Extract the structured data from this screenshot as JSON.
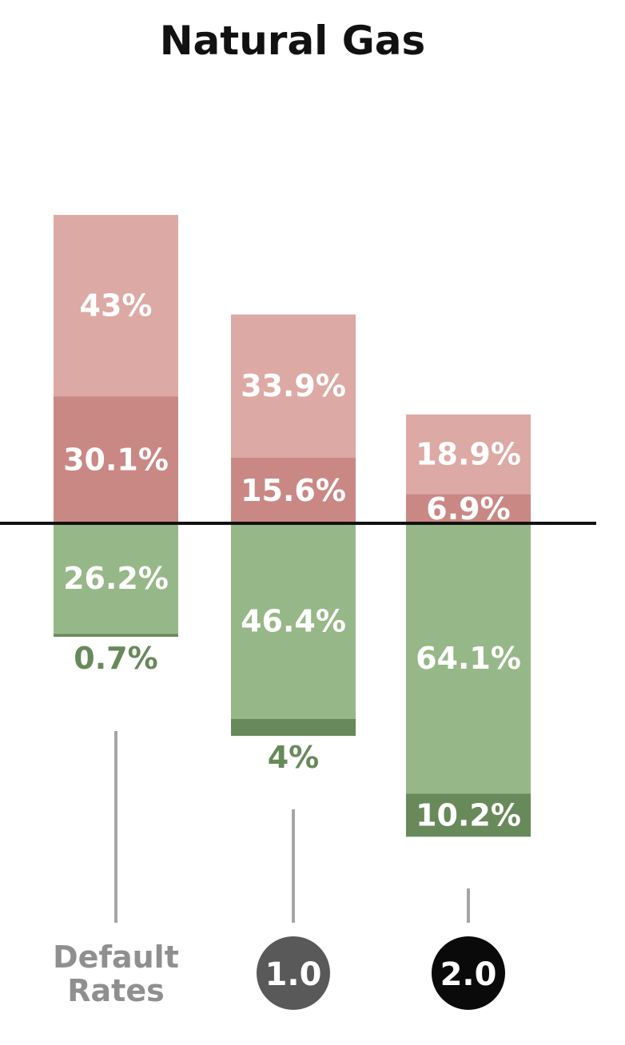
{
  "chart_data": {
    "type": "bar",
    "title": "Natural Gas",
    "categories": [
      "Default Rates",
      "1.0",
      "2.0"
    ],
    "series": [
      {
        "values": [
          30.1,
          15.6,
          6.9
        ],
        "labels": [
          "30.1%",
          "15.6%",
          "6.9%"
        ],
        "direction": "up",
        "color": "#c98884"
      },
      {
        "values": [
          43,
          33.9,
          18.9
        ],
        "labels": [
          "43%",
          "33.9%",
          "18.9%"
        ],
        "direction": "up",
        "color": "#dca9a4"
      },
      {
        "values": [
          26.2,
          46.4,
          64.1
        ],
        "labels": [
          "26.2%",
          "46.4%",
          "64.1%"
        ],
        "direction": "down",
        "color": "#96b787"
      },
      {
        "values": [
          0.7,
          4,
          10.2
        ],
        "labels": [
          "0.7%",
          "4%",
          "10.2%"
        ],
        "direction": "down",
        "color": "#68895a"
      }
    ],
    "category_styles": [
      {
        "text": [
          "Default",
          "Rates"
        ],
        "badge": false
      },
      {
        "text": [
          "1.0"
        ],
        "badge": true,
        "badge_color": "#595959"
      },
      {
        "text": [
          "2.0"
        ],
        "badge": true,
        "badge_color": "#0a0a0a"
      }
    ],
    "colors": {
      "label_light": "#ffffff",
      "label_red_outside": "#c98884",
      "label_green_outside": "#68895a",
      "baseline": "#111111",
      "stem": "#a6a6a6"
    }
  }
}
